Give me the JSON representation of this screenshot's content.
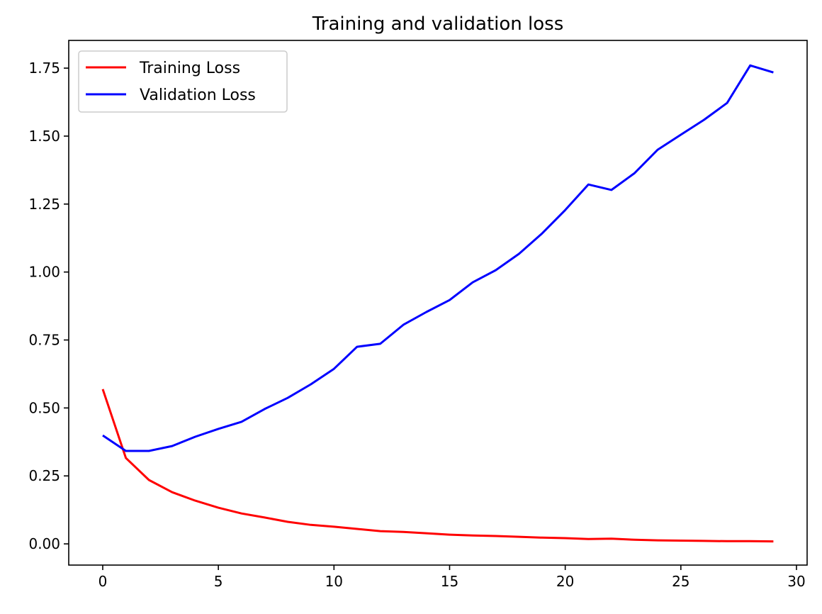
{
  "chart_data": {
    "type": "line",
    "title": "Training and validation loss",
    "xlabel": "",
    "ylabel": "",
    "xlim": [
      -1.47,
      30.46
    ],
    "ylim": [
      -0.078,
      1.852
    ],
    "xticks": [
      0,
      5,
      10,
      15,
      20,
      25,
      30
    ],
    "xtick_labels": [
      "0",
      "5",
      "10",
      "15",
      "20",
      "25",
      "30"
    ],
    "yticks": [
      0,
      0.25,
      0.5,
      0.75,
      1.0,
      1.25,
      1.5,
      1.75
    ],
    "ytick_labels": [
      "0.00",
      "0.25",
      "0.50",
      "0.75",
      "1.00",
      "1.25",
      "1.50",
      "1.75"
    ],
    "grid": false,
    "legend_position": "top-left",
    "x": [
      0,
      1,
      2,
      3,
      4,
      5,
      6,
      7,
      8,
      9,
      10,
      11,
      12,
      13,
      14,
      15,
      16,
      17,
      18,
      19,
      20,
      21,
      22,
      23,
      24,
      25,
      26,
      27,
      28,
      29
    ],
    "series": [
      {
        "name": "Training Loss",
        "color": "#ff0000",
        "values": [
          0.569,
          0.316,
          0.235,
          0.19,
          0.159,
          0.133,
          0.112,
          0.097,
          0.081,
          0.07,
          0.063,
          0.055,
          0.047,
          0.044,
          0.039,
          0.034,
          0.031,
          0.029,
          0.026,
          0.023,
          0.021,
          0.018,
          0.019,
          0.015,
          0.013,
          0.012,
          0.011,
          0.01,
          0.01,
          0.009
        ]
      },
      {
        "name": "Validation Loss",
        "color": "#0000ff",
        "values": [
          0.399,
          0.342,
          0.342,
          0.36,
          0.394,
          0.423,
          0.449,
          0.496,
          0.537,
          0.587,
          0.644,
          0.725,
          0.736,
          0.806,
          0.853,
          0.897,
          0.962,
          1.007,
          1.067,
          1.142,
          1.228,
          1.322,
          1.302,
          1.364,
          1.45,
          1.505,
          1.56,
          1.622,
          1.76,
          1.734
        ]
      }
    ]
  }
}
